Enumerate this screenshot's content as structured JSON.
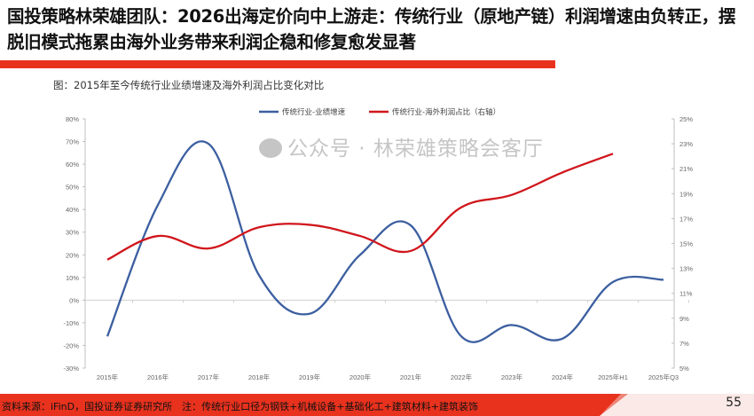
{
  "title": "国投策略林荣雄团队：2026出海定价向中上游走：传统行业（原地产链）利润增速由负转正，摆脱旧模式拖累由海外业务带来利润企稳和修复愈发显著",
  "figure_caption": "图：2015年至今传统行业业绩增速及海外利润占比变化对比",
  "footer": {
    "source": "资料来源：iFinD，国投证券证券研究所　注：传统行业口径为钢铁+机械设备+基础化工+建筑材料+建筑装饰",
    "page_number": "55"
  },
  "watermark": "公众号 · 林荣雄策略会客厅",
  "colors": {
    "accent": "#e8321e",
    "series_blue": "#3c5fa0",
    "series_red": "#d0161c"
  },
  "chart_data": {
    "type": "line",
    "title": "",
    "categories": [
      "2015年",
      "2016年",
      "2017年",
      "2018年",
      "2019年",
      "2020年",
      "2021年",
      "2022年",
      "2023年",
      "2024年",
      "2025年H1",
      "2025年Q3"
    ],
    "left_axis": {
      "ylim": [
        -30,
        80
      ],
      "ticks": [
        "-30%",
        "-20%",
        "-10%",
        "0%",
        "10%",
        "20%",
        "30%",
        "40%",
        "50%",
        "60%",
        "70%",
        "80%"
      ]
    },
    "right_axis": {
      "ylim": [
        5,
        25
      ],
      "ticks": [
        "5%",
        "7%",
        "9%",
        "11%",
        "13%",
        "15%",
        "17%",
        "19%",
        "21%",
        "23%",
        "25%"
      ]
    },
    "legend_position": "top",
    "grid": false,
    "smooth": true,
    "series": [
      {
        "name": "传统行业-业绩增速",
        "axis": "left",
        "color": "#3c5fa0",
        "values": [
          -16,
          42,
          69,
          11,
          -6,
          20,
          33,
          -16,
          -11,
          -17,
          8,
          9
        ]
      },
      {
        "name": "传统行业-海外利润占比（右轴）",
        "axis": "right",
        "color": "#d0161c",
        "values": [
          13.7,
          15.6,
          14.6,
          16.3,
          16.5,
          15.6,
          14.4,
          17.9,
          18.9,
          20.7,
          22.2,
          null
        ]
      }
    ]
  }
}
